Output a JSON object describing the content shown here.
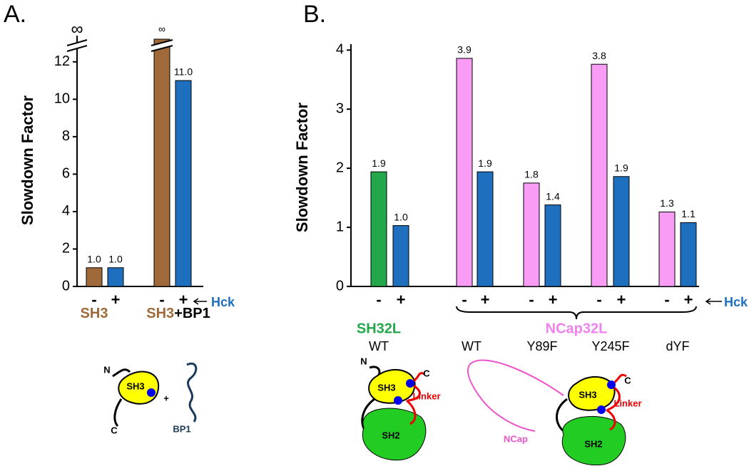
{
  "chart_data": [
    {
      "type": "bar",
      "title": "A.",
      "y_label": "Slowdown Factor",
      "categories": [
        "-",
        "+",
        "-",
        "+"
      ],
      "values": [
        1,
        1,
        null,
        11
      ],
      "value_labels": [
        "1.0",
        "1.0",
        "∞",
        "11.0"
      ],
      "colors": [
        "#a0693a",
        "#1f6fbf",
        "#a0693a",
        "#1f6fbf"
      ],
      "ylim": [
        0,
        13.4
      ],
      "yticks": [
        0,
        2,
        4,
        6,
        8,
        10,
        12
      ],
      "axis_break_label": "∞",
      "group_labels": [
        [
          {
            "text": "SH3",
            "color": "#a0693a"
          }
        ],
        [
          {
            "text": "SH3",
            "color": "#a0693a"
          },
          {
            "text": "+BP1",
            "color": "#000000"
          }
        ]
      ],
      "indicator": "Hck",
      "indicator_color": "#1f6fbf",
      "diagram_labels": [
        "N",
        "SH3",
        "C",
        "+",
        "BP1"
      ]
    },
    {
      "type": "bar",
      "title": "B.",
      "y_label": "Slowdown Factor",
      "categories": [
        "-",
        "+",
        "-",
        "+",
        "-",
        "+",
        "-",
        "+",
        "-",
        "+"
      ],
      "values": [
        1.94,
        1.03,
        3.86,
        1.94,
        1.75,
        1.38,
        3.76,
        1.86,
        1.26,
        1.08
      ],
      "value_labels": [
        "1.9",
        "1.0",
        "3.9",
        "1.9",
        "1.8",
        "1.4",
        "3.8",
        "1.9",
        "1.3",
        "1.1"
      ],
      "colors": [
        "#22a84a",
        "#1f6fbf",
        "#f99cf5",
        "#1f6fbf",
        "#f99cf5",
        "#1f6fbf",
        "#f99cf5",
        "#1f6fbf",
        "#f99cf5",
        "#1f6fbf"
      ],
      "ylim": [
        0,
        4.1
      ],
      "yticks": [
        0,
        1,
        2,
        3,
        4
      ],
      "group_labels": [
        {
          "text": "SH32L",
          "color": "#22a84a"
        },
        {
          "text": "NCap32L",
          "color": "#ee82ee"
        }
      ],
      "subgroup_labels": [
        "WT",
        "WT",
        "Y89F",
        "Y245F",
        "dYF"
      ],
      "indicator": "Hck",
      "indicator_color": "#1f6fbf",
      "diagram_labels": [
        "N",
        "SH3",
        "C",
        "Linker",
        "SH2",
        "NCap",
        "SH3",
        "C",
        "Linker",
        "SH2"
      ]
    }
  ]
}
